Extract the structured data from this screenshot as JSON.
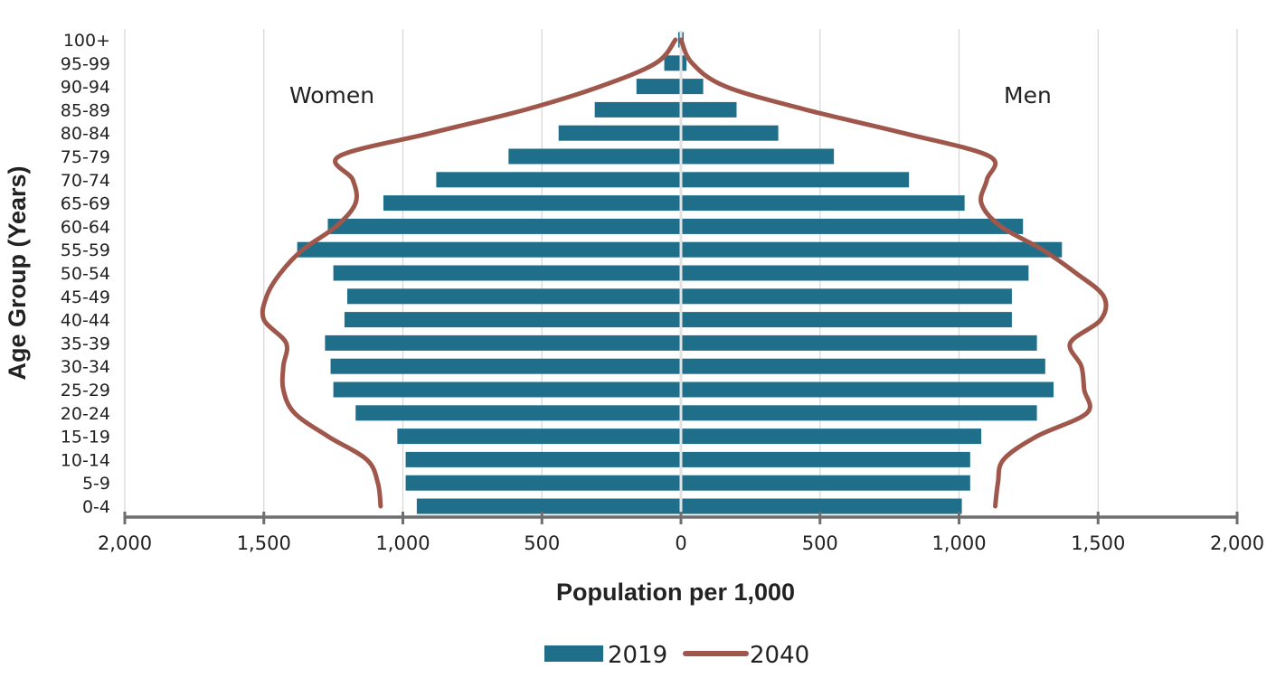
{
  "chart_data": {
    "type": "bar",
    "subtype": "population-pyramid",
    "xlabel": "Population per 1,000",
    "ylabel": "Age Group (Years)",
    "side_labels": {
      "left": "Women",
      "right": "Men"
    },
    "x_ticks": [
      "2,000",
      "1,500",
      "1,000",
      "500",
      "0",
      "500",
      "1,000",
      "1,500",
      "2,000"
    ],
    "x_range": [
      -2000,
      2000
    ],
    "grid": "vertical",
    "categories": [
      "0-4",
      "5-9",
      "10-14",
      "15-19",
      "20-24",
      "25-29",
      "30-34",
      "35-39",
      "40-44",
      "45-49",
      "50-54",
      "55-59",
      "60-64",
      "65-69",
      "70-74",
      "75-79",
      "80-84",
      "85-89",
      "90-94",
      "95-99",
      "100+"
    ],
    "series": [
      {
        "name": "2019",
        "mark": "bar",
        "color": "#1f6f8b",
        "women": [
          950,
          990,
          990,
          1020,
          1170,
          1250,
          1260,
          1280,
          1210,
          1200,
          1250,
          1380,
          1270,
          1070,
          880,
          620,
          440,
          310,
          160,
          60,
          10
        ],
        "men": [
          1010,
          1040,
          1040,
          1080,
          1280,
          1340,
          1310,
          1280,
          1190,
          1190,
          1250,
          1370,
          1230,
          1020,
          820,
          550,
          350,
          200,
          80,
          20,
          10
        ]
      },
      {
        "name": "2040",
        "mark": "line",
        "color": "#a0574b",
        "women": [
          1080,
          1090,
          1130,
          1270,
          1390,
          1430,
          1430,
          1420,
          1500,
          1490,
          1440,
          1360,
          1240,
          1170,
          1180,
          1230,
          900,
          560,
          290,
          90,
          20
        ],
        "men": [
          1130,
          1140,
          1160,
          1280,
          1460,
          1450,
          1440,
          1400,
          1510,
          1520,
          1420,
          1300,
          1150,
          1080,
          1100,
          1110,
          800,
          450,
          160,
          40,
          0
        ]
      }
    ],
    "legend": {
      "position": "bottom",
      "items": [
        "2019",
        "2040"
      ]
    }
  }
}
